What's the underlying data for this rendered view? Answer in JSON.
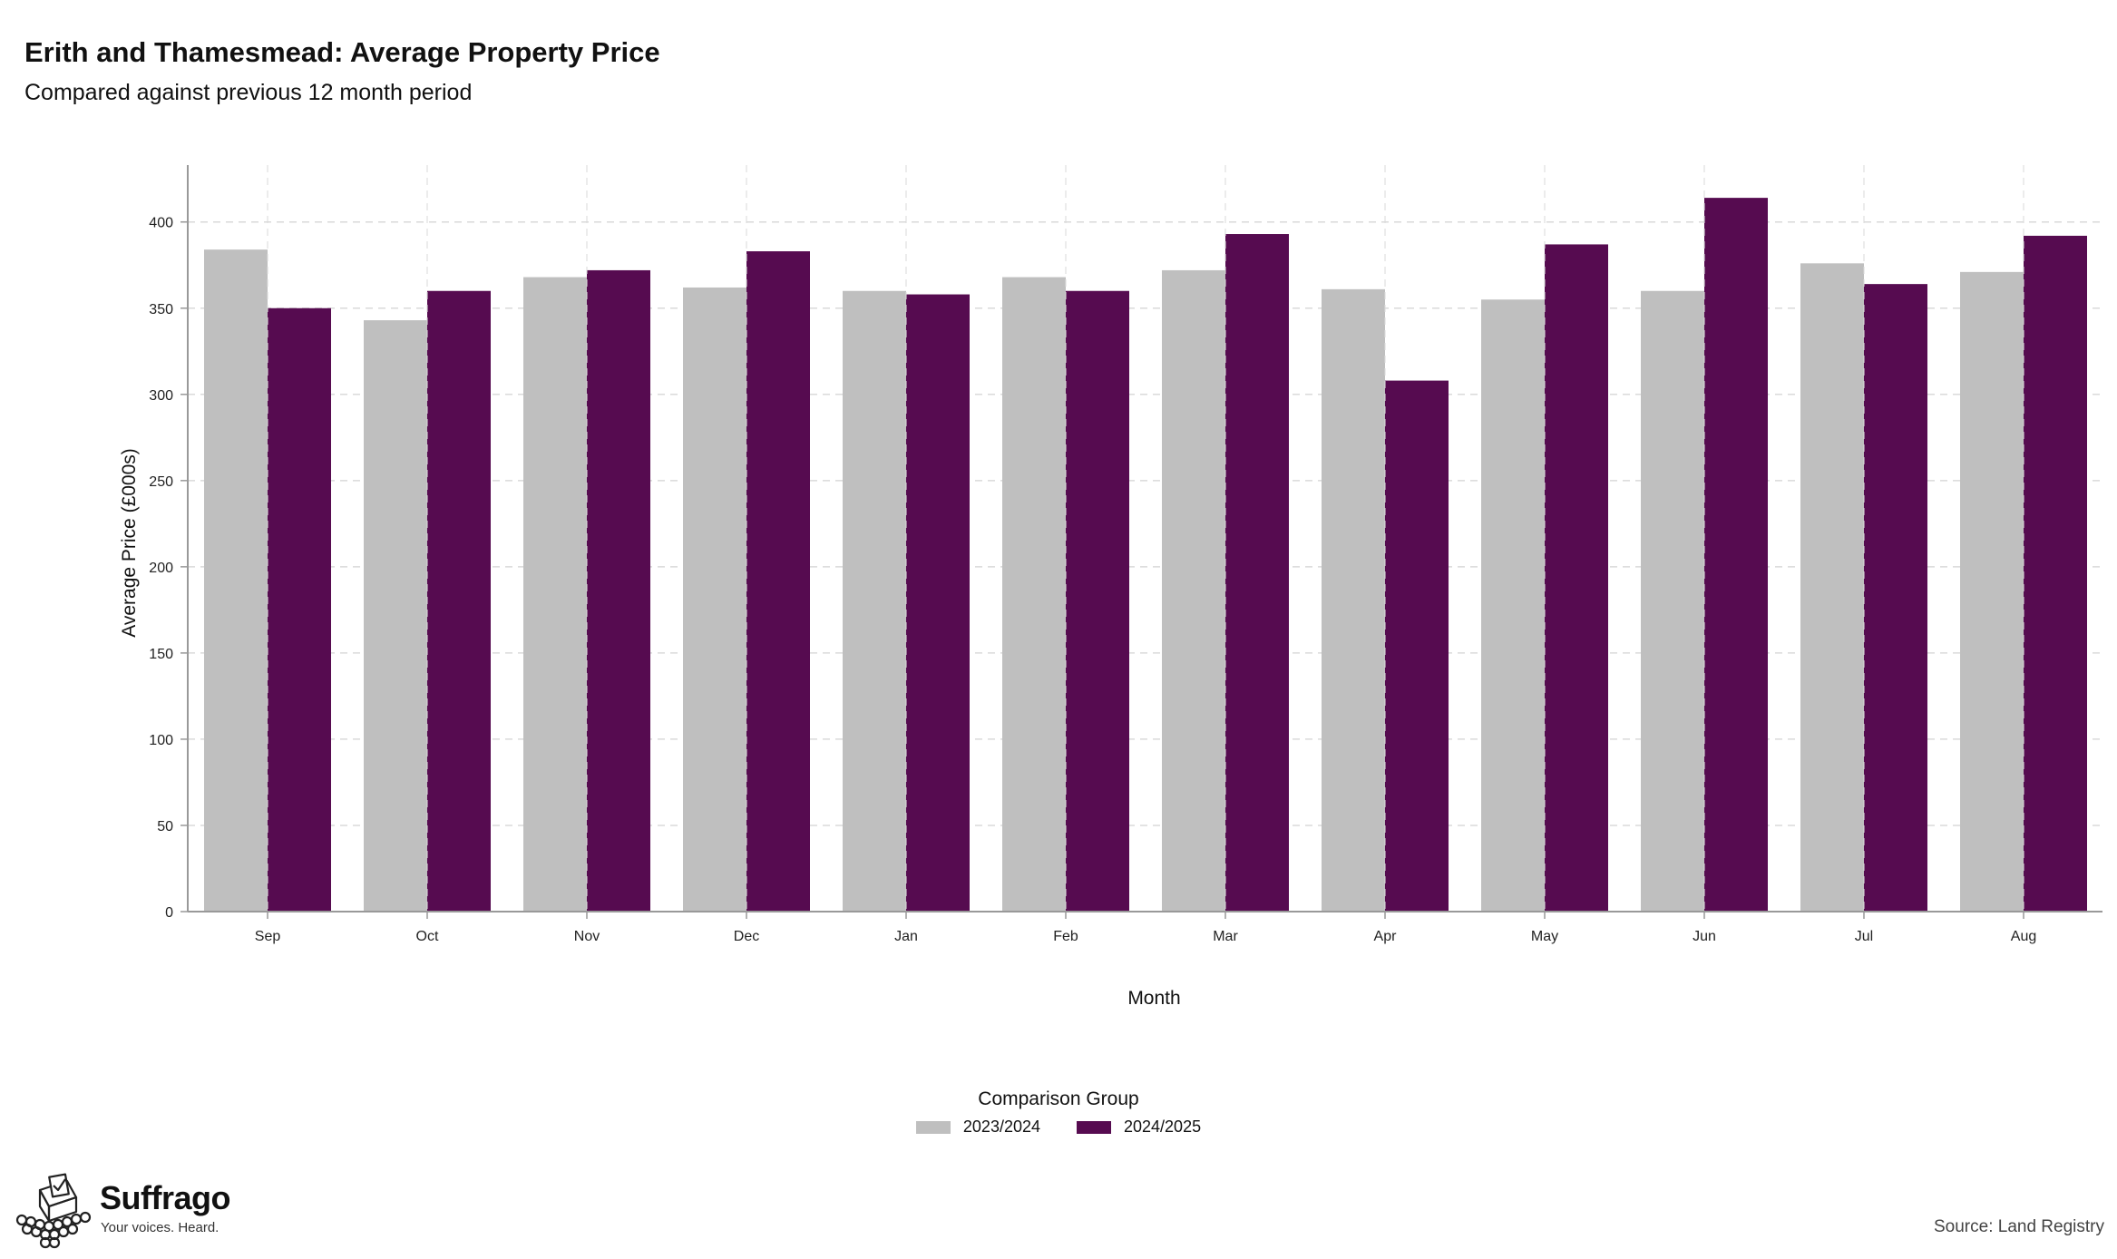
{
  "title": "Erith and Thamesmead: Average Property Price",
  "subtitle": "Compared against previous 12 month period",
  "source": "Source: Land Registry",
  "brand": {
    "name": "Suffrago",
    "tagline": "Your voices. Heard."
  },
  "legend": {
    "title": "Comparison Group"
  },
  "colors": {
    "series_2023": "#bfbfbf",
    "series_2024": "#560b50",
    "grid": "#dadada",
    "axis": "#999999"
  },
  "chart_data": {
    "type": "bar",
    "title": "Erith and Thamesmead: Average Property Price",
    "subtitle": "Compared against previous 12 month period",
    "xlabel": "Month",
    "ylabel": "Average Price (£000s)",
    "ylim": [
      0,
      400
    ],
    "yticks": [
      0,
      50,
      100,
      150,
      200,
      250,
      300,
      350,
      400
    ],
    "grid": true,
    "legend_position": "bottom",
    "categories": [
      "Sep",
      "Oct",
      "Nov",
      "Dec",
      "Jan",
      "Feb",
      "Mar",
      "Apr",
      "May",
      "Jun",
      "Jul",
      "Aug"
    ],
    "series": [
      {
        "name": "2023/2024",
        "color": "#bfbfbf",
        "values": [
          384,
          343,
          368,
          362,
          360,
          368,
          372,
          361,
          355,
          360,
          376,
          371
        ]
      },
      {
        "name": "2024/2025",
        "color": "#560b50",
        "values": [
          350,
          360,
          372,
          383,
          358,
          360,
          393,
          308,
          387,
          414,
          364,
          392
        ]
      }
    ]
  }
}
